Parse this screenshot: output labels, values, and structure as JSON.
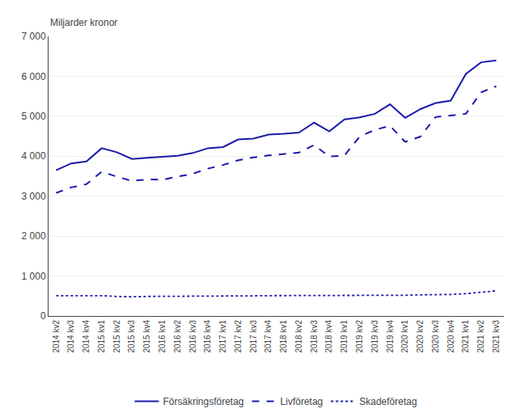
{
  "chart_data": {
    "type": "line",
    "ylabel": "Miljarder kronor",
    "categories": [
      "2014 kv2",
      "2014 kv3",
      "2014 kv4",
      "2015 kv1",
      "2015 kv2",
      "2015 kv3",
      "2015 kv4",
      "2016 kv1",
      "2016 kv2",
      "2016 kv3",
      "2016 kv4",
      "2017 kv1",
      "2017 kv2",
      "2017 kv3",
      "2017 kv4",
      "2018 kv1",
      "2018 kv2",
      "2018 kv3",
      "2018 kv4",
      "2019 kv1",
      "2019 kv2",
      "2019 kv3",
      "2019 kv4",
      "2020 kv1",
      "2020 kv2",
      "2020 kv3",
      "2020 kv4",
      "2021 kv1",
      "2021 kv2",
      "2021 kv3"
    ],
    "series": [
      {
        "name": "Försäkringsföretag",
        "color": "#1a1aaa",
        "line_style": "solid",
        "values": [
          3650,
          3820,
          3870,
          4200,
          4100,
          3930,
          3960,
          3980,
          4010,
          4080,
          4200,
          4230,
          4420,
          4440,
          4540,
          4560,
          4590,
          4840,
          4620,
          4920,
          4970,
          5060,
          5300,
          4960,
          5180,
          5330,
          5390,
          6060,
          6350,
          6400
        ]
      },
      {
        "name": "Livföretag",
        "color": "#1a1aaa",
        "line_style": "dash",
        "values": [
          3080,
          3220,
          3300,
          3610,
          3490,
          3380,
          3420,
          3410,
          3490,
          3560,
          3690,
          3780,
          3900,
          3970,
          4020,
          4060,
          4090,
          4280,
          3990,
          4020,
          4490,
          4660,
          4760,
          4360,
          4490,
          4980,
          5020,
          5060,
          5600,
          5750
        ]
      },
      {
        "name": "Skadeföretag",
        "color": "#1a1aaa",
        "line_style": "dot",
        "values": [
          510,
          510,
          510,
          510,
          490,
          480,
          490,
          490,
          490,
          500,
          500,
          500,
          505,
          505,
          510,
          510,
          510,
          510,
          510,
          510,
          510,
          515,
          520,
          520,
          530,
          535,
          540,
          560,
          590,
          630
        ]
      }
    ],
    "ylim": [
      0,
      7000
    ],
    "yticks": [
      0,
      {
        "value": 1000,
        "label": "1 000"
      },
      {
        "value": 2000,
        "label": "2 000"
      },
      {
        "value": 3000,
        "label": "3 000"
      },
      {
        "value": 4000,
        "label": "4 000"
      },
      {
        "value": 5000,
        "label": "5 000"
      },
      {
        "value": 6000,
        "label": "6 000"
      },
      {
        "value": 7000,
        "label": "7 000"
      }
    ],
    "grid": true,
    "legend": "bottom"
  }
}
